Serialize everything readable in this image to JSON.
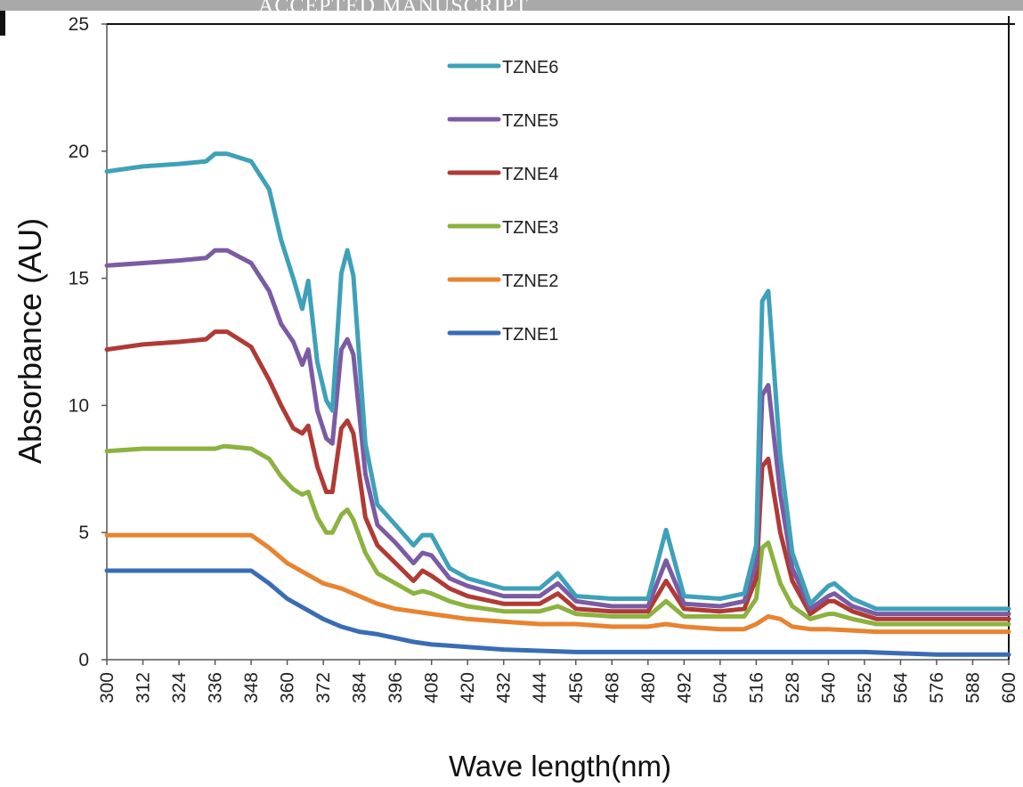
{
  "header": {
    "watermark": "ACCEPTED MANUSCRIPT"
  },
  "chart_data": {
    "type": "line",
    "title": "",
    "xlabel": "Wave length(nm)",
    "ylabel": "Absorbance (AU)",
    "xlim": [
      300,
      600
    ],
    "ylim": [
      0,
      25
    ],
    "yticks": [
      0,
      5,
      10,
      15,
      20,
      25
    ],
    "xticks": [
      300,
      312,
      324,
      336,
      348,
      360,
      372,
      384,
      396,
      408,
      420,
      432,
      444,
      456,
      468,
      480,
      492,
      504,
      516,
      528,
      540,
      552,
      564,
      576,
      588,
      600
    ],
    "grid": false,
    "legend_position": "top-center",
    "series": [
      {
        "name": "TZNE6",
        "color": "#3ea1b9",
        "points": [
          [
            300,
            19.2
          ],
          [
            312,
            19.4
          ],
          [
            324,
            19.5
          ],
          [
            333,
            19.6
          ],
          [
            336,
            19.9
          ],
          [
            340,
            19.9
          ],
          [
            348,
            19.6
          ],
          [
            354,
            18.5
          ],
          [
            358,
            16.5
          ],
          [
            362,
            15.0
          ],
          [
            365,
            13.8
          ],
          [
            367,
            14.9
          ],
          [
            370,
            11.7
          ],
          [
            373,
            10.2
          ],
          [
            375,
            9.8
          ],
          [
            378,
            15.2
          ],
          [
            380,
            16.1
          ],
          [
            382,
            15.1
          ],
          [
            386,
            8.5
          ],
          [
            390,
            6.1
          ],
          [
            396,
            5.3
          ],
          [
            402,
            4.5
          ],
          [
            405,
            4.9
          ],
          [
            408,
            4.9
          ],
          [
            414,
            3.6
          ],
          [
            420,
            3.2
          ],
          [
            432,
            2.8
          ],
          [
            444,
            2.8
          ],
          [
            450,
            3.4
          ],
          [
            456,
            2.5
          ],
          [
            468,
            2.4
          ],
          [
            480,
            2.4
          ],
          [
            486,
            5.1
          ],
          [
            492,
            2.5
          ],
          [
            504,
            2.4
          ],
          [
            512,
            2.6
          ],
          [
            516,
            4.5
          ],
          [
            518,
            14.1
          ],
          [
            520,
            14.5
          ],
          [
            524,
            8.0
          ],
          [
            528,
            4.2
          ],
          [
            534,
            2.2
          ],
          [
            540,
            2.9
          ],
          [
            542,
            3.0
          ],
          [
            548,
            2.4
          ],
          [
            556,
            2.0
          ],
          [
            600,
            2.0
          ]
        ]
      },
      {
        "name": "TZNE5",
        "color": "#7b5ba3",
        "points": [
          [
            300,
            15.5
          ],
          [
            312,
            15.6
          ],
          [
            324,
            15.7
          ],
          [
            333,
            15.8
          ],
          [
            336,
            16.1
          ],
          [
            340,
            16.1
          ],
          [
            348,
            15.6
          ],
          [
            354,
            14.5
          ],
          [
            358,
            13.2
          ],
          [
            362,
            12.5
          ],
          [
            365,
            11.6
          ],
          [
            367,
            12.2
          ],
          [
            370,
            9.8
          ],
          [
            373,
            8.7
          ],
          [
            375,
            8.5
          ],
          [
            378,
            12.2
          ],
          [
            380,
            12.6
          ],
          [
            382,
            12.0
          ],
          [
            386,
            7.3
          ],
          [
            390,
            5.3
          ],
          [
            396,
            4.6
          ],
          [
            402,
            3.8
          ],
          [
            405,
            4.2
          ],
          [
            408,
            4.1
          ],
          [
            414,
            3.2
          ],
          [
            420,
            2.9
          ],
          [
            432,
            2.5
          ],
          [
            444,
            2.5
          ],
          [
            450,
            3.0
          ],
          [
            456,
            2.3
          ],
          [
            468,
            2.1
          ],
          [
            480,
            2.1
          ],
          [
            486,
            3.9
          ],
          [
            492,
            2.2
          ],
          [
            504,
            2.1
          ],
          [
            512,
            2.3
          ],
          [
            516,
            3.8
          ],
          [
            518,
            10.4
          ],
          [
            520,
            10.8
          ],
          [
            524,
            6.5
          ],
          [
            528,
            3.6
          ],
          [
            534,
            2.0
          ],
          [
            540,
            2.5
          ],
          [
            542,
            2.6
          ],
          [
            548,
            2.1
          ],
          [
            556,
            1.8
          ],
          [
            600,
            1.8
          ]
        ]
      },
      {
        "name": "TZNE4",
        "color": "#b03a35",
        "points": [
          [
            300,
            12.2
          ],
          [
            312,
            12.4
          ],
          [
            324,
            12.5
          ],
          [
            333,
            12.6
          ],
          [
            336,
            12.9
          ],
          [
            340,
            12.9
          ],
          [
            348,
            12.3
          ],
          [
            354,
            11.0
          ],
          [
            358,
            10.0
          ],
          [
            362,
            9.1
          ],
          [
            365,
            8.9
          ],
          [
            367,
            9.2
          ],
          [
            370,
            7.6
          ],
          [
            373,
            6.6
          ],
          [
            375,
            6.6
          ],
          [
            378,
            9.1
          ],
          [
            380,
            9.4
          ],
          [
            382,
            8.9
          ],
          [
            386,
            5.6
          ],
          [
            390,
            4.5
          ],
          [
            396,
            3.8
          ],
          [
            402,
            3.1
          ],
          [
            405,
            3.5
          ],
          [
            408,
            3.3
          ],
          [
            414,
            2.8
          ],
          [
            420,
            2.5
          ],
          [
            432,
            2.2
          ],
          [
            444,
            2.2
          ],
          [
            450,
            2.6
          ],
          [
            456,
            2.0
          ],
          [
            468,
            1.9
          ],
          [
            480,
            1.9
          ],
          [
            486,
            3.1
          ],
          [
            492,
            2.0
          ],
          [
            504,
            1.9
          ],
          [
            512,
            2.0
          ],
          [
            516,
            3.2
          ],
          [
            518,
            7.6
          ],
          [
            520,
            7.9
          ],
          [
            524,
            5.0
          ],
          [
            528,
            3.1
          ],
          [
            534,
            1.8
          ],
          [
            540,
            2.3
          ],
          [
            542,
            2.3
          ],
          [
            548,
            1.9
          ],
          [
            556,
            1.6
          ],
          [
            600,
            1.6
          ]
        ]
      },
      {
        "name": "TZNE3",
        "color": "#8cb23f",
        "points": [
          [
            300,
            8.2
          ],
          [
            312,
            8.3
          ],
          [
            324,
            8.3
          ],
          [
            336,
            8.3
          ],
          [
            339,
            8.4
          ],
          [
            348,
            8.3
          ],
          [
            354,
            7.9
          ],
          [
            358,
            7.2
          ],
          [
            362,
            6.7
          ],
          [
            365,
            6.5
          ],
          [
            367,
            6.6
          ],
          [
            370,
            5.6
          ],
          [
            373,
            5.0
          ],
          [
            375,
            5.0
          ],
          [
            378,
            5.7
          ],
          [
            380,
            5.9
          ],
          [
            382,
            5.5
          ],
          [
            386,
            4.2
          ],
          [
            390,
            3.4
          ],
          [
            396,
            3.0
          ],
          [
            402,
            2.6
          ],
          [
            405,
            2.7
          ],
          [
            408,
            2.6
          ],
          [
            414,
            2.3
          ],
          [
            420,
            2.1
          ],
          [
            432,
            1.9
          ],
          [
            444,
            1.9
          ],
          [
            450,
            2.1
          ],
          [
            456,
            1.8
          ],
          [
            468,
            1.7
          ],
          [
            480,
            1.7
          ],
          [
            486,
            2.3
          ],
          [
            492,
            1.7
          ],
          [
            504,
            1.7
          ],
          [
            512,
            1.7
          ],
          [
            516,
            2.4
          ],
          [
            518,
            4.4
          ],
          [
            520,
            4.6
          ],
          [
            524,
            3.0
          ],
          [
            528,
            2.1
          ],
          [
            534,
            1.6
          ],
          [
            540,
            1.8
          ],
          [
            542,
            1.8
          ],
          [
            548,
            1.6
          ],
          [
            556,
            1.4
          ],
          [
            600,
            1.4
          ]
        ]
      },
      {
        "name": "TZNE2",
        "color": "#e8832f",
        "points": [
          [
            300,
            4.9
          ],
          [
            324,
            4.9
          ],
          [
            336,
            4.9
          ],
          [
            348,
            4.9
          ],
          [
            354,
            4.4
          ],
          [
            360,
            3.8
          ],
          [
            366,
            3.4
          ],
          [
            372,
            3.0
          ],
          [
            378,
            2.8
          ],
          [
            384,
            2.5
          ],
          [
            390,
            2.2
          ],
          [
            396,
            2.0
          ],
          [
            402,
            1.9
          ],
          [
            408,
            1.8
          ],
          [
            414,
            1.7
          ],
          [
            420,
            1.6
          ],
          [
            432,
            1.5
          ],
          [
            444,
            1.4
          ],
          [
            456,
            1.4
          ],
          [
            468,
            1.3
          ],
          [
            480,
            1.3
          ],
          [
            486,
            1.4
          ],
          [
            492,
            1.3
          ],
          [
            504,
            1.2
          ],
          [
            512,
            1.2
          ],
          [
            516,
            1.4
          ],
          [
            520,
            1.7
          ],
          [
            524,
            1.6
          ],
          [
            528,
            1.3
          ],
          [
            534,
            1.2
          ],
          [
            540,
            1.2
          ],
          [
            556,
            1.1
          ],
          [
            600,
            1.1
          ]
        ]
      },
      {
        "name": "TZNE1",
        "color": "#3a6cb5",
        "points": [
          [
            300,
            3.5
          ],
          [
            324,
            3.5
          ],
          [
            336,
            3.5
          ],
          [
            348,
            3.5
          ],
          [
            354,
            3.0
          ],
          [
            360,
            2.4
          ],
          [
            366,
            2.0
          ],
          [
            372,
            1.6
          ],
          [
            378,
            1.3
          ],
          [
            384,
            1.1
          ],
          [
            390,
            1.0
          ],
          [
            396,
            0.85
          ],
          [
            402,
            0.7
          ],
          [
            408,
            0.6
          ],
          [
            414,
            0.55
          ],
          [
            420,
            0.5
          ],
          [
            432,
            0.4
          ],
          [
            444,
            0.35
          ],
          [
            456,
            0.3
          ],
          [
            468,
            0.3
          ],
          [
            480,
            0.3
          ],
          [
            504,
            0.3
          ],
          [
            528,
            0.3
          ],
          [
            552,
            0.3
          ],
          [
            564,
            0.25
          ],
          [
            576,
            0.2
          ],
          [
            588,
            0.2
          ],
          [
            600,
            0.2
          ]
        ]
      }
    ]
  }
}
